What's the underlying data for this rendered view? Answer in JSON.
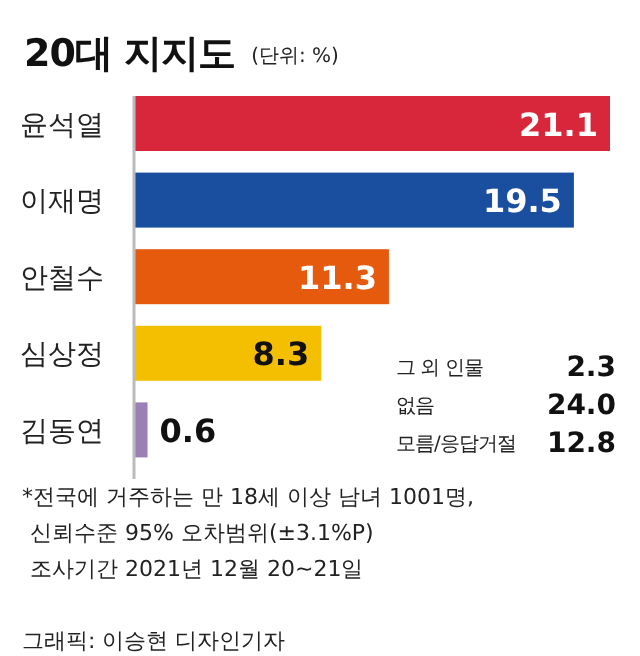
{
  "chart_data": {
    "type": "bar",
    "orientation": "horizontal",
    "title": "20대 지지도",
    "subtitle": "(단위: %)",
    "categories": [
      "윤석열",
      "이재명",
      "안철수",
      "심상정",
      "김동연"
    ],
    "values": [
      21.1,
      19.5,
      11.3,
      8.3,
      0.6
    ],
    "colors": [
      "#d8263a",
      "#1a4fa0",
      "#e65a0e",
      "#f4bf00",
      "#9b80b8"
    ],
    "data_labels": true,
    "annotations": [
      "그 외 인물 2.3",
      "없음 24.0",
      "모름/응답거절 12.8",
      "*전국에 거주하는 만 18세 이상 남녀 1001명,",
      "신뢰수준 95% 오차범위(±3.1%P)",
      "조사기간 2021년 12월 20~21일",
      "그래픽: 이승현 디자인기자"
    ]
  }
}
